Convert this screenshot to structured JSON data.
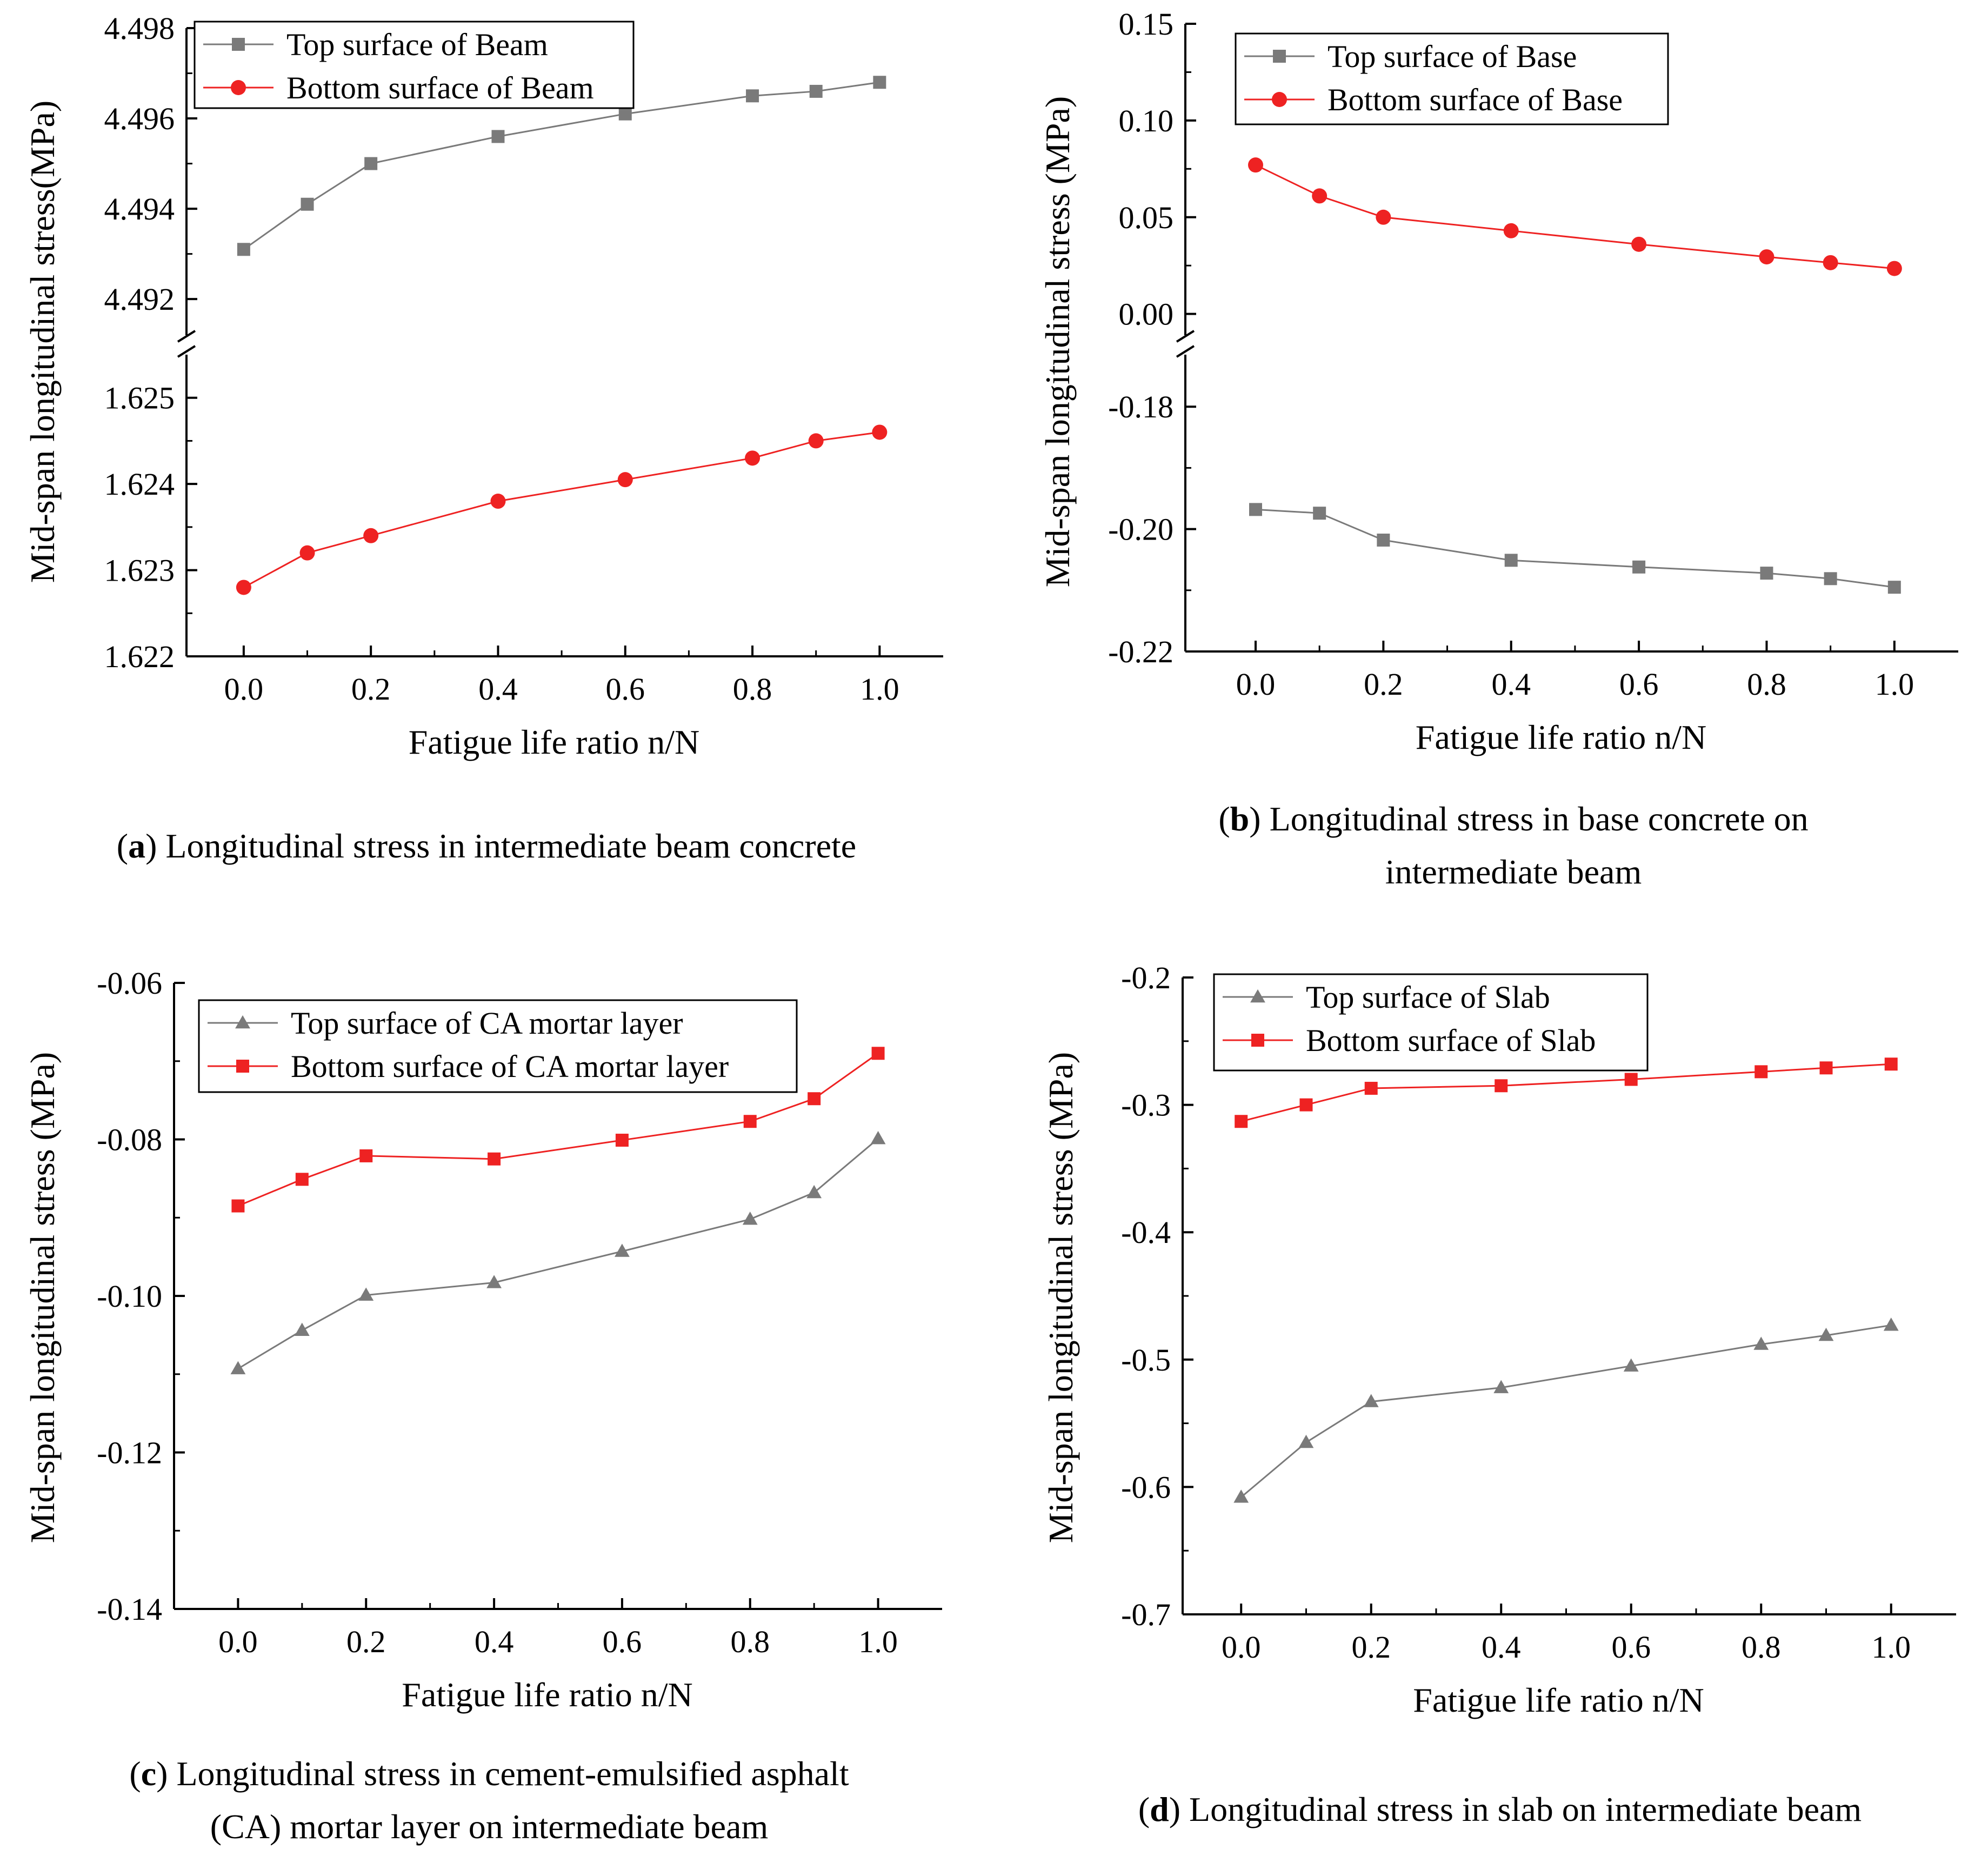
{
  "chart_data": [
    {
      "panel": "a",
      "type": "line",
      "ylabel": "Mid-span longitudinal  stress(MPa)",
      "xlabel": "Fatigue life ratio n/N",
      "x_ticks": [
        "0.0",
        "0.2",
        "0.4",
        "0.6",
        "0.8",
        "1.0"
      ],
      "xlim": [
        -0.09,
        1.1
      ],
      "broken_axis": true,
      "upper": {
        "ylim": [
          4.4912,
          4.498
        ],
        "ticks": [
          4.492,
          4.494,
          4.496,
          4.498
        ],
        "tick_labels": [
          "4.492",
          "4.494",
          "4.496",
          "4.498"
        ]
      },
      "lower": {
        "ylim": [
          1.622,
          1.6255
        ],
        "ticks": [
          1.622,
          1.623,
          1.624,
          1.625
        ],
        "tick_labels": [
          "1.622",
          "1.623",
          "1.624",
          "1.625"
        ]
      },
      "series": [
        {
          "name": "Top surface of Beam",
          "segment": "upper",
          "marker": "square",
          "color": "#7a7a7a",
          "x": [
            0.0,
            0.1,
            0.2,
            0.4,
            0.6,
            0.8,
            0.9,
            1.0
          ],
          "y": [
            4.4931,
            4.4941,
            4.495,
            4.4956,
            4.4961,
            4.4965,
            4.4966,
            4.4968
          ]
        },
        {
          "name": "Bottom surface of Beam",
          "segment": "lower",
          "marker": "circle",
          "color": "#ee2222",
          "x": [
            0.0,
            0.1,
            0.2,
            0.4,
            0.6,
            0.8,
            0.9,
            1.0
          ],
          "y": [
            1.6228,
            1.6232,
            1.6234,
            1.6238,
            1.62405,
            1.6243,
            1.6245,
            1.6246
          ]
        }
      ]
    },
    {
      "panel": "b",
      "type": "line",
      "ylabel": "Mid-span longitudinal stress (MPa)",
      "xlabel": "Fatigue life ratio n/N",
      "x_ticks": [
        "0.0",
        "0.2",
        "0.4",
        "0.6",
        "0.8",
        "1.0"
      ],
      "xlim": [
        -0.11,
        1.1
      ],
      "broken_axis": true,
      "upper": {
        "ylim": [
          -0.011,
          0.15
        ],
        "ticks": [
          0.0,
          0.05,
          0.1,
          0.15
        ],
        "tick_labels": [
          "0.00",
          "0.05",
          "0.10",
          "0.15"
        ]
      },
      "lower": {
        "ylim": [
          -0.22,
          -0.1715
        ],
        "ticks": [
          -0.22,
          -0.2,
          -0.18
        ],
        "tick_labels": [
          "-0.22",
          "-0.20",
          "-0.18"
        ]
      },
      "series": [
        {
          "name": "Top surface of Base",
          "segment": "lower",
          "marker": "square",
          "color": "#7a7a7a",
          "x": [
            0.0,
            0.1,
            0.2,
            0.4,
            0.6,
            0.8,
            0.9,
            1.0
          ],
          "y": [
            -0.1968,
            -0.1974,
            -0.2018,
            -0.2051,
            -0.2062,
            -0.2072,
            -0.2081,
            -0.2095
          ]
        },
        {
          "name": "Bottom surface of Base",
          "segment": "upper",
          "marker": "circle",
          "color": "#ee2222",
          "x": [
            0.0,
            0.1,
            0.2,
            0.4,
            0.6,
            0.8,
            0.9,
            1.0
          ],
          "y": [
            0.077,
            0.061,
            0.05,
            0.043,
            0.036,
            0.0295,
            0.0265,
            0.0235
          ]
        }
      ]
    },
    {
      "panel": "c",
      "type": "line",
      "ylabel": "Mid-span longitudinal stress (MPa)",
      "xlabel": "Fatigue life ratio n/N",
      "x_ticks": [
        "0.0",
        "0.2",
        "0.4",
        "0.6",
        "0.8",
        "1.0"
      ],
      "xlim": [
        -0.1,
        1.1
      ],
      "ylim": [
        -0.14,
        -0.06
      ],
      "y_ticks": [
        -0.06,
        -0.08,
        -0.1,
        -0.12,
        -0.14
      ],
      "y_tick_labels": [
        "-0.06",
        "-0.08",
        "-0.10",
        "-0.12",
        "-0.14"
      ],
      "series": [
        {
          "name": "Top surface of CA mortar layer",
          "marker": "triangle",
          "color": "#7a7a7a",
          "x": [
            0.0,
            0.1,
            0.2,
            0.4,
            0.6,
            0.8,
            0.9,
            1.0
          ],
          "y": [
            -0.1093,
            -0.1044,
            -0.0999,
            -0.0983,
            -0.0943,
            -0.0902,
            -0.0868,
            -0.0799
          ]
        },
        {
          "name": "Bottom surface of CA mortar layer",
          "marker": "square",
          "color": "#ee2222",
          "x": [
            0.0,
            0.1,
            0.2,
            0.4,
            0.6,
            0.8,
            0.9,
            1.0
          ],
          "y": [
            -0.0885,
            -0.0851,
            -0.0821,
            -0.0825,
            -0.0801,
            -0.0777,
            -0.0748,
            -0.069
          ]
        }
      ]
    },
    {
      "panel": "d",
      "type": "line",
      "ylabel": "Mid-span longitudinal stress (MPa)",
      "xlabel": "Fatigue life ratio n/N",
      "x_ticks": [
        "0.0",
        "0.2",
        "0.4",
        "0.6",
        "0.8",
        "1.0"
      ],
      "xlim": [
        -0.09,
        1.1
      ],
      "ylim": [
        -0.7,
        -0.2
      ],
      "y_ticks": [
        -0.2,
        -0.3,
        -0.4,
        -0.5,
        -0.6,
        -0.7
      ],
      "y_tick_labels": [
        "-0.2",
        "-0.3",
        "-0.4",
        "-0.5",
        "-0.6",
        "-0.7"
      ],
      "series": [
        {
          "name": "Top surface of Slab",
          "marker": "triangle",
          "color": "#7a7a7a",
          "x": [
            0.0,
            0.1,
            0.2,
            0.4,
            0.6,
            0.8,
            0.9,
            1.0
          ],
          "y": [
            -0.608,
            -0.565,
            -0.533,
            -0.522,
            -0.505,
            -0.488,
            -0.481,
            -0.473
          ]
        },
        {
          "name": "Bottom surface of Slab",
          "marker": "square",
          "color": "#ee2222",
          "x": [
            0.0,
            0.1,
            0.2,
            0.4,
            0.6,
            0.8,
            0.9,
            1.0
          ],
          "y": [
            -0.313,
            -0.3,
            -0.287,
            -0.285,
            -0.28,
            -0.274,
            -0.271,
            -0.268
          ]
        }
      ]
    }
  ],
  "captions": [
    {
      "label": "a",
      "text": " Longitudinal stress in intermediate beam concrete"
    },
    {
      "label": "b",
      "text": " Longitudinal stress in base concrete on",
      "line2": "intermediate beam"
    },
    {
      "label": "c",
      "text": " Longitudinal stress in cement-emulsified asphalt",
      "line2": "(CA) mortar layer on intermediate beam"
    },
    {
      "label": "d",
      "text": " Longitudinal stress in slab on intermediate beam"
    }
  ]
}
